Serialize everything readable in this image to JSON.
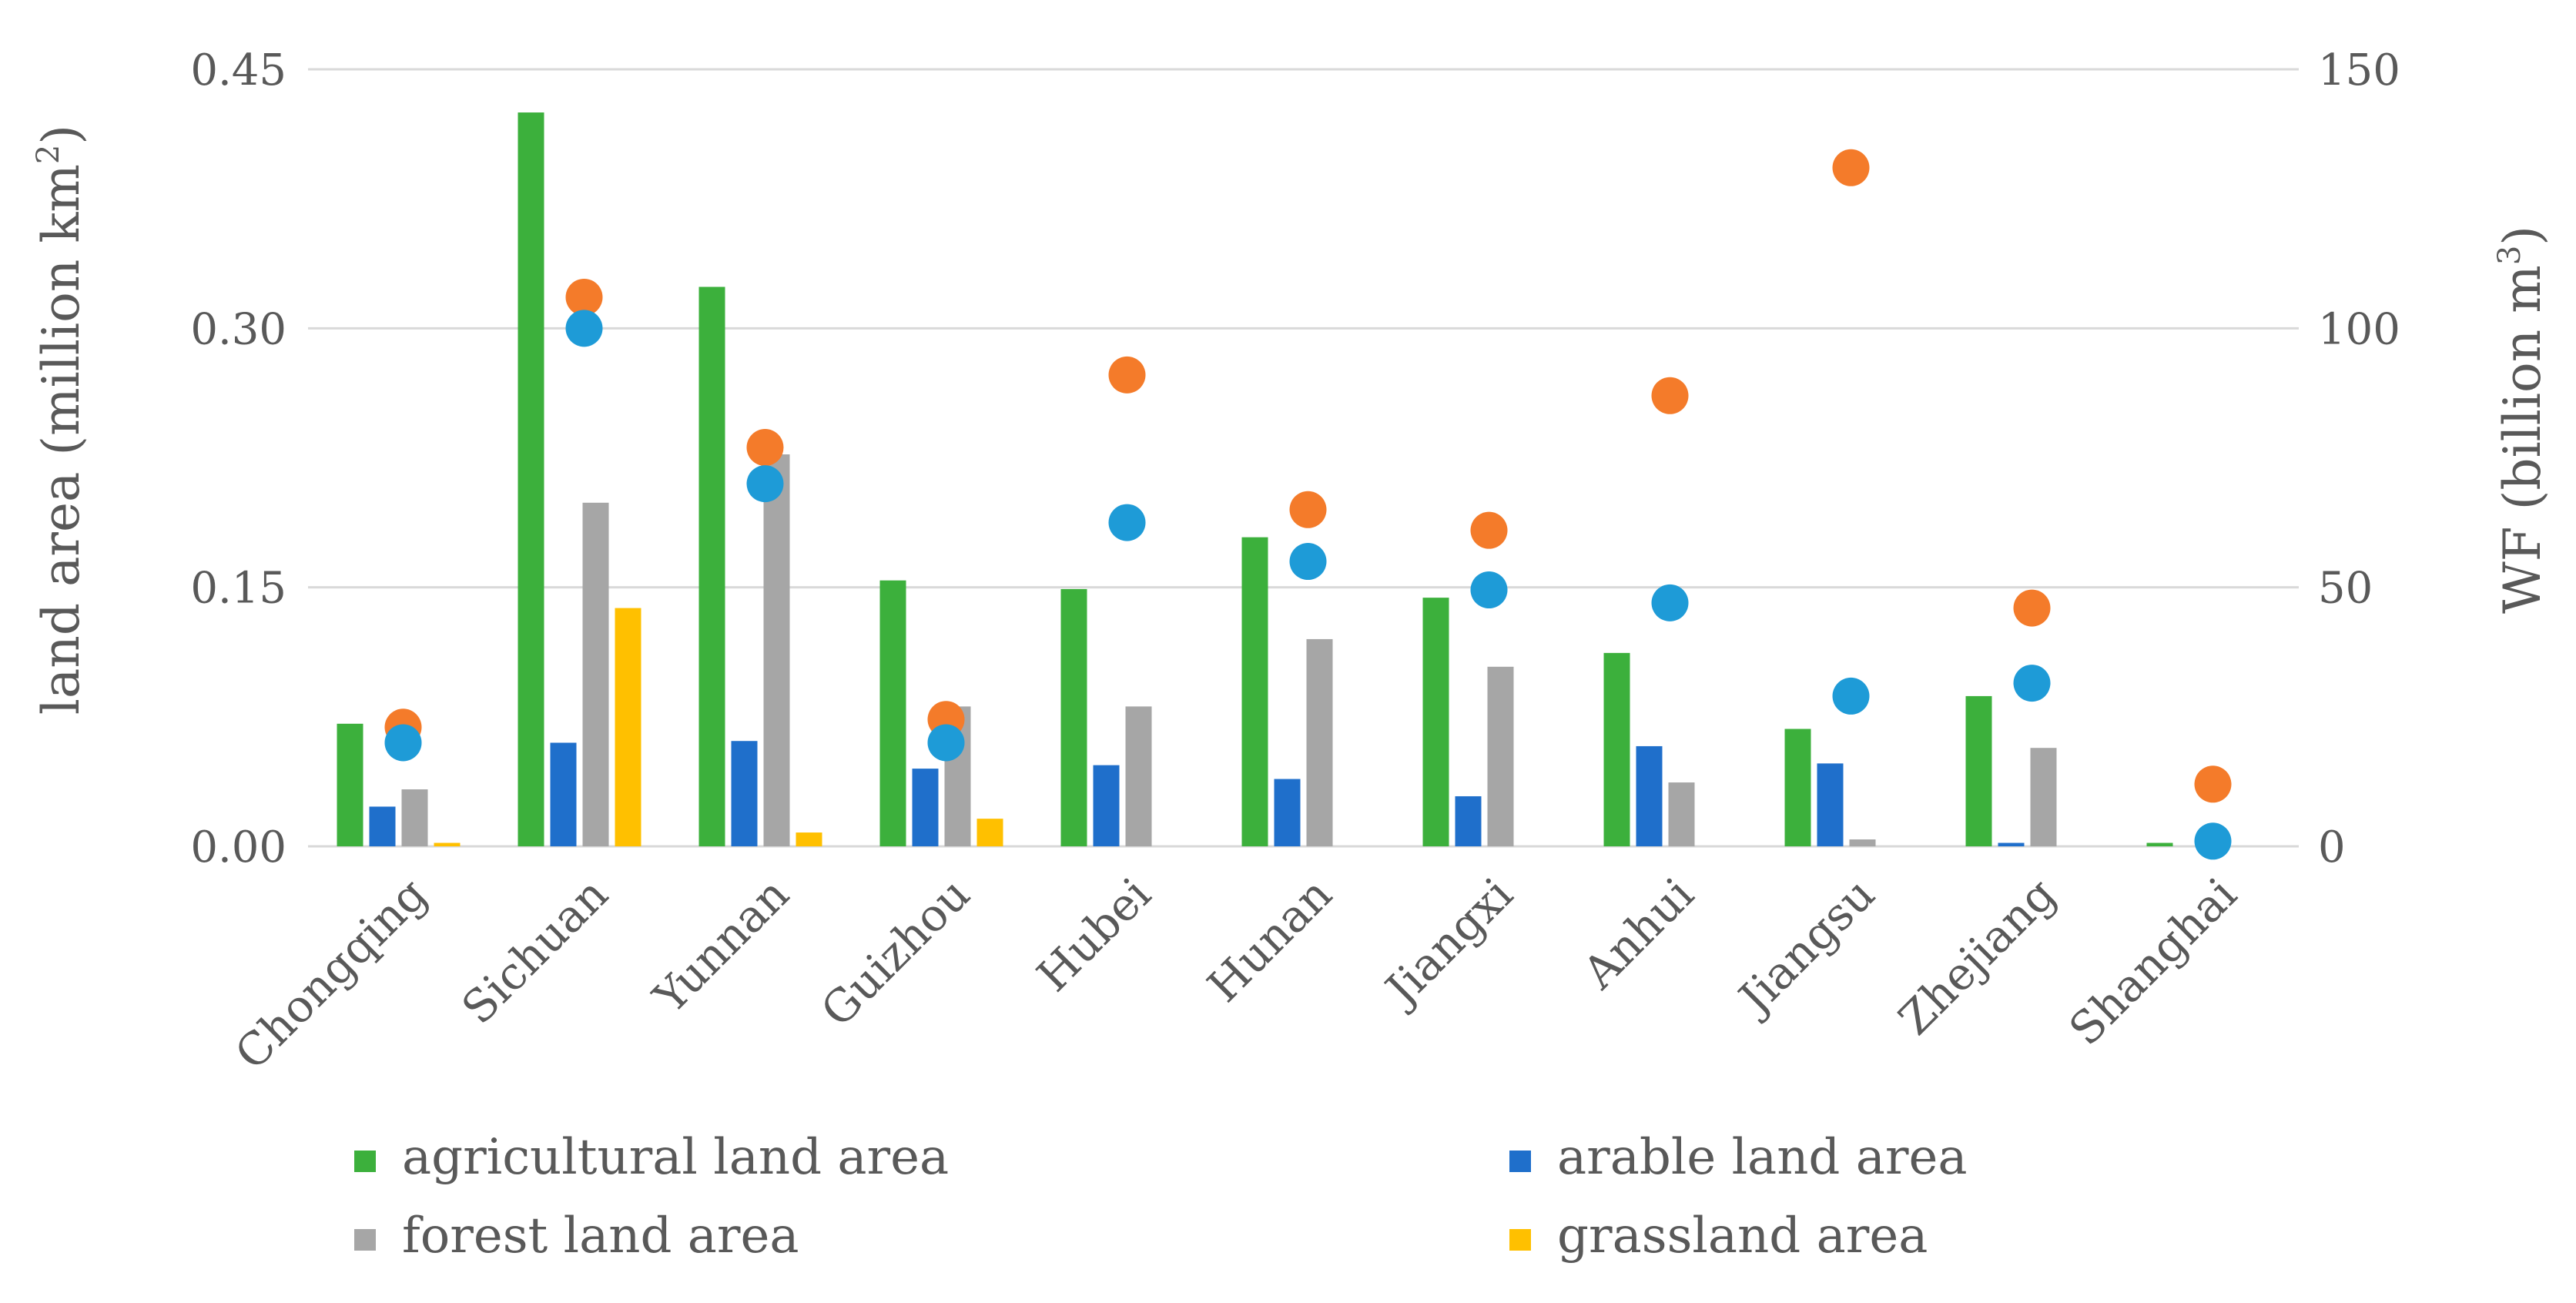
{
  "chart_data": {
    "type": "bar",
    "categories": [
      "Chongqing",
      "Sichuan",
      "Yunnan",
      "Guizhou",
      "Hubei",
      "Hunan",
      "Jiangxi",
      "Anhui",
      "Jiangsu",
      "Zhejiang",
      "Shanghai"
    ],
    "series": [
      {
        "name": "agricultural land area",
        "axis": "left",
        "kind": "bar",
        "color": "#3CB03C",
        "values": [
          0.071,
          0.425,
          0.324,
          0.154,
          0.149,
          0.179,
          0.144,
          0.112,
          0.068,
          0.087,
          0.002
        ]
      },
      {
        "name": "arable land area",
        "axis": "left",
        "kind": "bar",
        "color": "#1F6FCB",
        "values": [
          0.023,
          0.06,
          0.061,
          0.045,
          0.047,
          0.039,
          0.029,
          0.058,
          0.048,
          0.002,
          0.0
        ]
      },
      {
        "name": "forest land area",
        "axis": "left",
        "kind": "bar",
        "color": "#A6A6A6",
        "values": [
          0.033,
          0.199,
          0.227,
          0.081,
          0.081,
          0.12,
          0.104,
          0.037,
          0.004,
          0.057,
          0.0
        ]
      },
      {
        "name": "grassland area",
        "axis": "left",
        "kind": "bar",
        "color": "#FFC000",
        "values": [
          0.002,
          0.138,
          0.008,
          0.016,
          0.0,
          0.0,
          0.0,
          0.0,
          0.0,
          0.0,
          0.0
        ]
      },
      {
        "axis": "right",
        "kind": "point",
        "color": "#F47B2A",
        "values": [
          23.0,
          106.0,
          77.0,
          24.5,
          91.0,
          65.0,
          61.0,
          87.0,
          131.0,
          46.0,
          12.0
        ]
      },
      {
        "axis": "right",
        "kind": "point",
        "color": "#1E9BD7",
        "values": [
          20.0,
          100.0,
          70.0,
          20.0,
          62.5,
          55.0,
          49.5,
          47.0,
          29.0,
          31.5,
          1.0
        ]
      }
    ],
    "left_axis": {
      "label": "land area (million km",
      "label_sup": "2",
      "label_end": ")",
      "ylim": [
        0,
        0.45
      ],
      "ticks": [
        "0.00",
        "0.15",
        "0.30",
        "0.45"
      ]
    },
    "right_axis": {
      "label": "WF (billion m",
      "label_sup": "3",
      "label_end": ")",
      "ylim": [
        0,
        150
      ],
      "ticks": [
        "0",
        "50",
        "100",
        "150"
      ]
    },
    "grid": true,
    "legend_position": "bottom",
    "legend": [
      "agricultural land area",
      "arable land area",
      "forest land area",
      "grassland area"
    ]
  }
}
